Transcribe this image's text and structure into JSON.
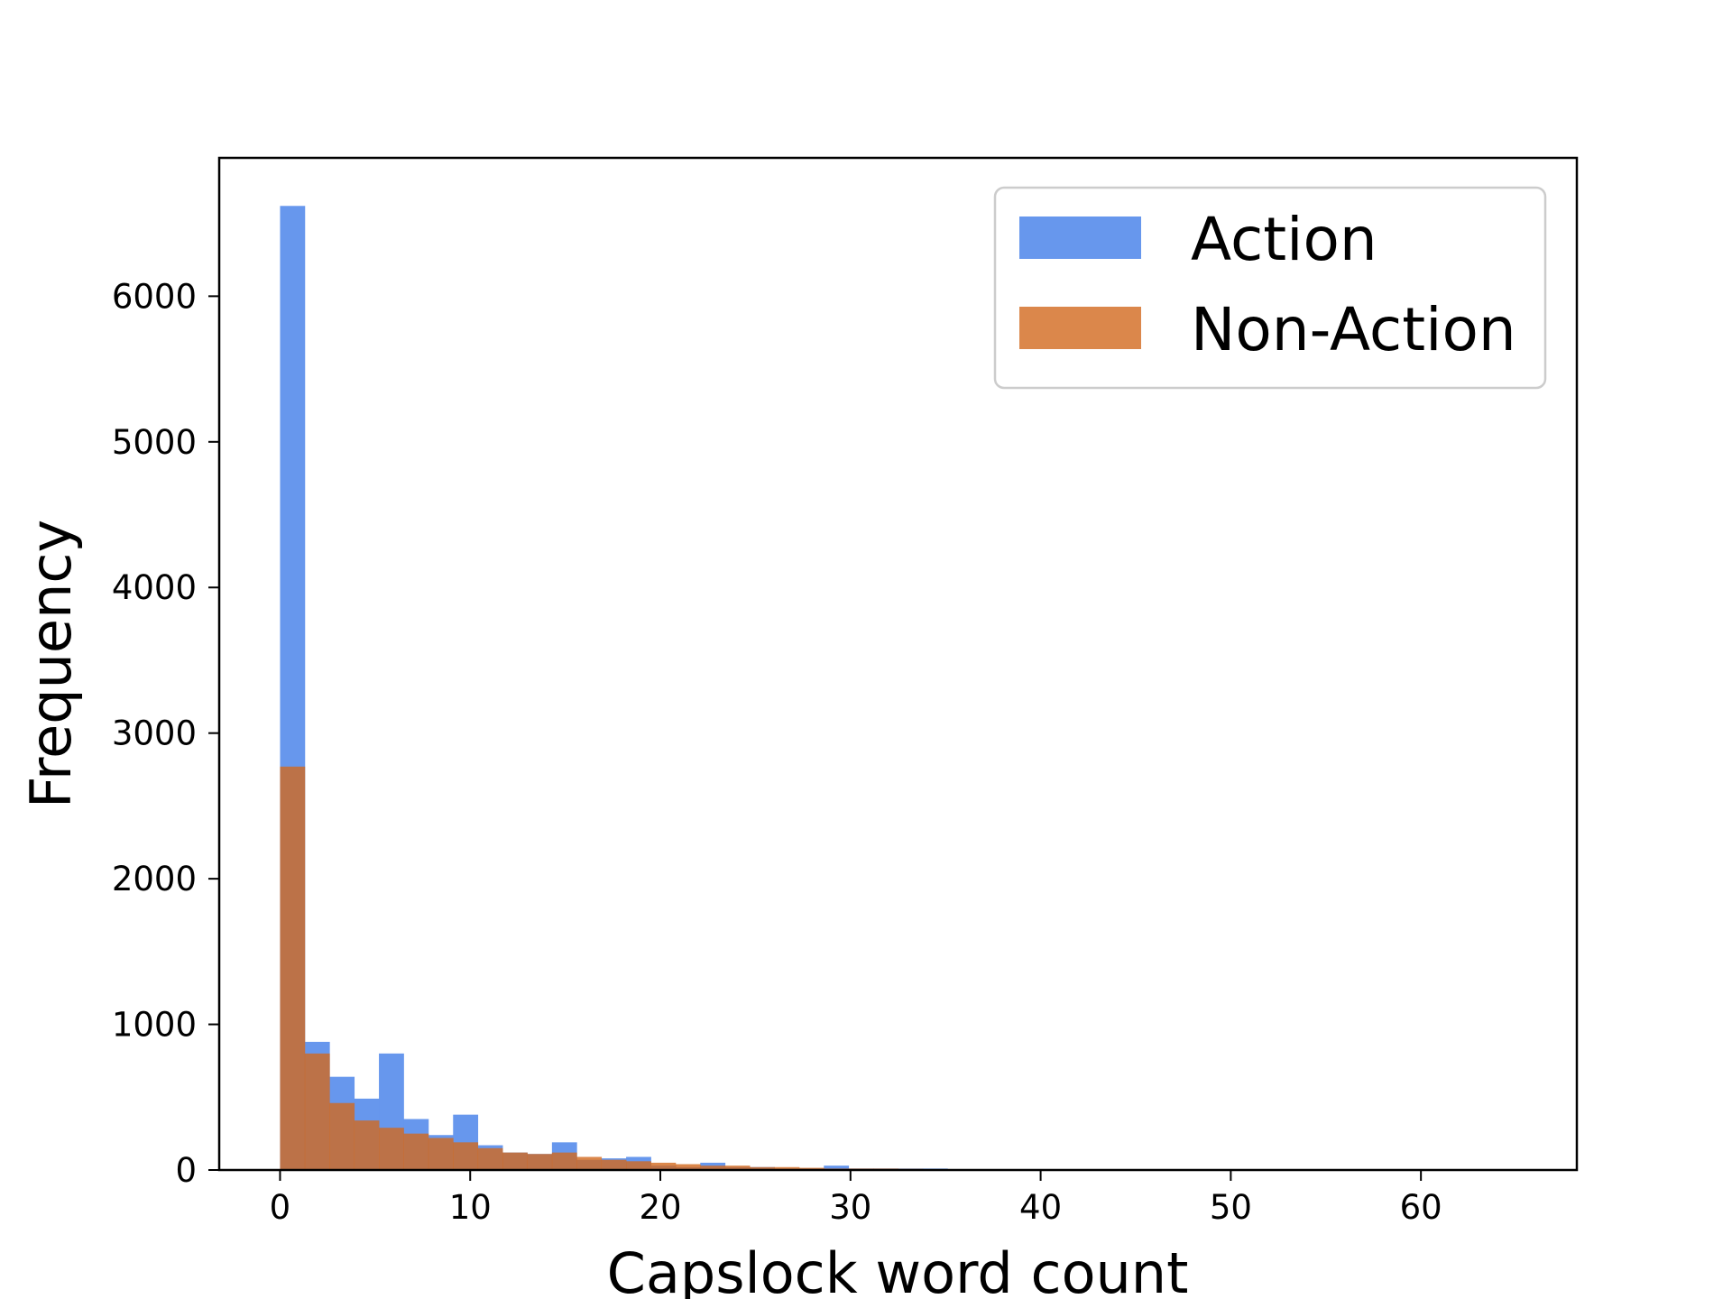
{
  "chart_data": {
    "type": "bar",
    "title": "",
    "xlabel": "Capslock word count",
    "ylabel": "Frequency",
    "xlim": [
      -3.2,
      68.2
    ],
    "ylim": [
      0,
      6950
    ],
    "x_ticks": [
      0,
      10,
      20,
      30,
      40,
      50,
      60
    ],
    "y_ticks": [
      0,
      1000,
      2000,
      3000,
      4000,
      5000,
      6000
    ],
    "grid": false,
    "legend_position": "upper right",
    "bin_width": 1.3,
    "bin_start": 0,
    "series": [
      {
        "name": "Action",
        "color": "#6495ED",
        "values": [
          6620,
          880,
          640,
          490,
          800,
          350,
          240,
          380,
          170,
          120,
          110,
          190,
          70,
          80,
          90,
          30,
          20,
          50,
          20,
          20,
          10,
          10,
          30,
          10,
          10,
          10,
          10,
          5,
          5,
          5,
          5,
          5,
          5,
          3,
          3,
          3,
          3,
          3,
          3,
          2,
          2,
          2,
          2,
          2,
          2,
          2,
          2,
          2,
          2,
          2
        ]
      },
      {
        "name": "Non-Action",
        "color": "#D2691E",
        "values": [
          2770,
          800,
          460,
          340,
          290,
          250,
          220,
          190,
          150,
          120,
          110,
          120,
          90,
          70,
          60,
          50,
          40,
          30,
          30,
          20,
          20,
          15,
          10,
          10,
          10,
          8,
          6,
          5,
          5,
          4,
          3,
          3,
          2,
          2,
          2,
          2,
          1,
          1,
          1,
          1,
          1,
          1,
          1,
          1,
          1,
          1,
          1,
          1,
          1,
          1
        ]
      }
    ]
  }
}
